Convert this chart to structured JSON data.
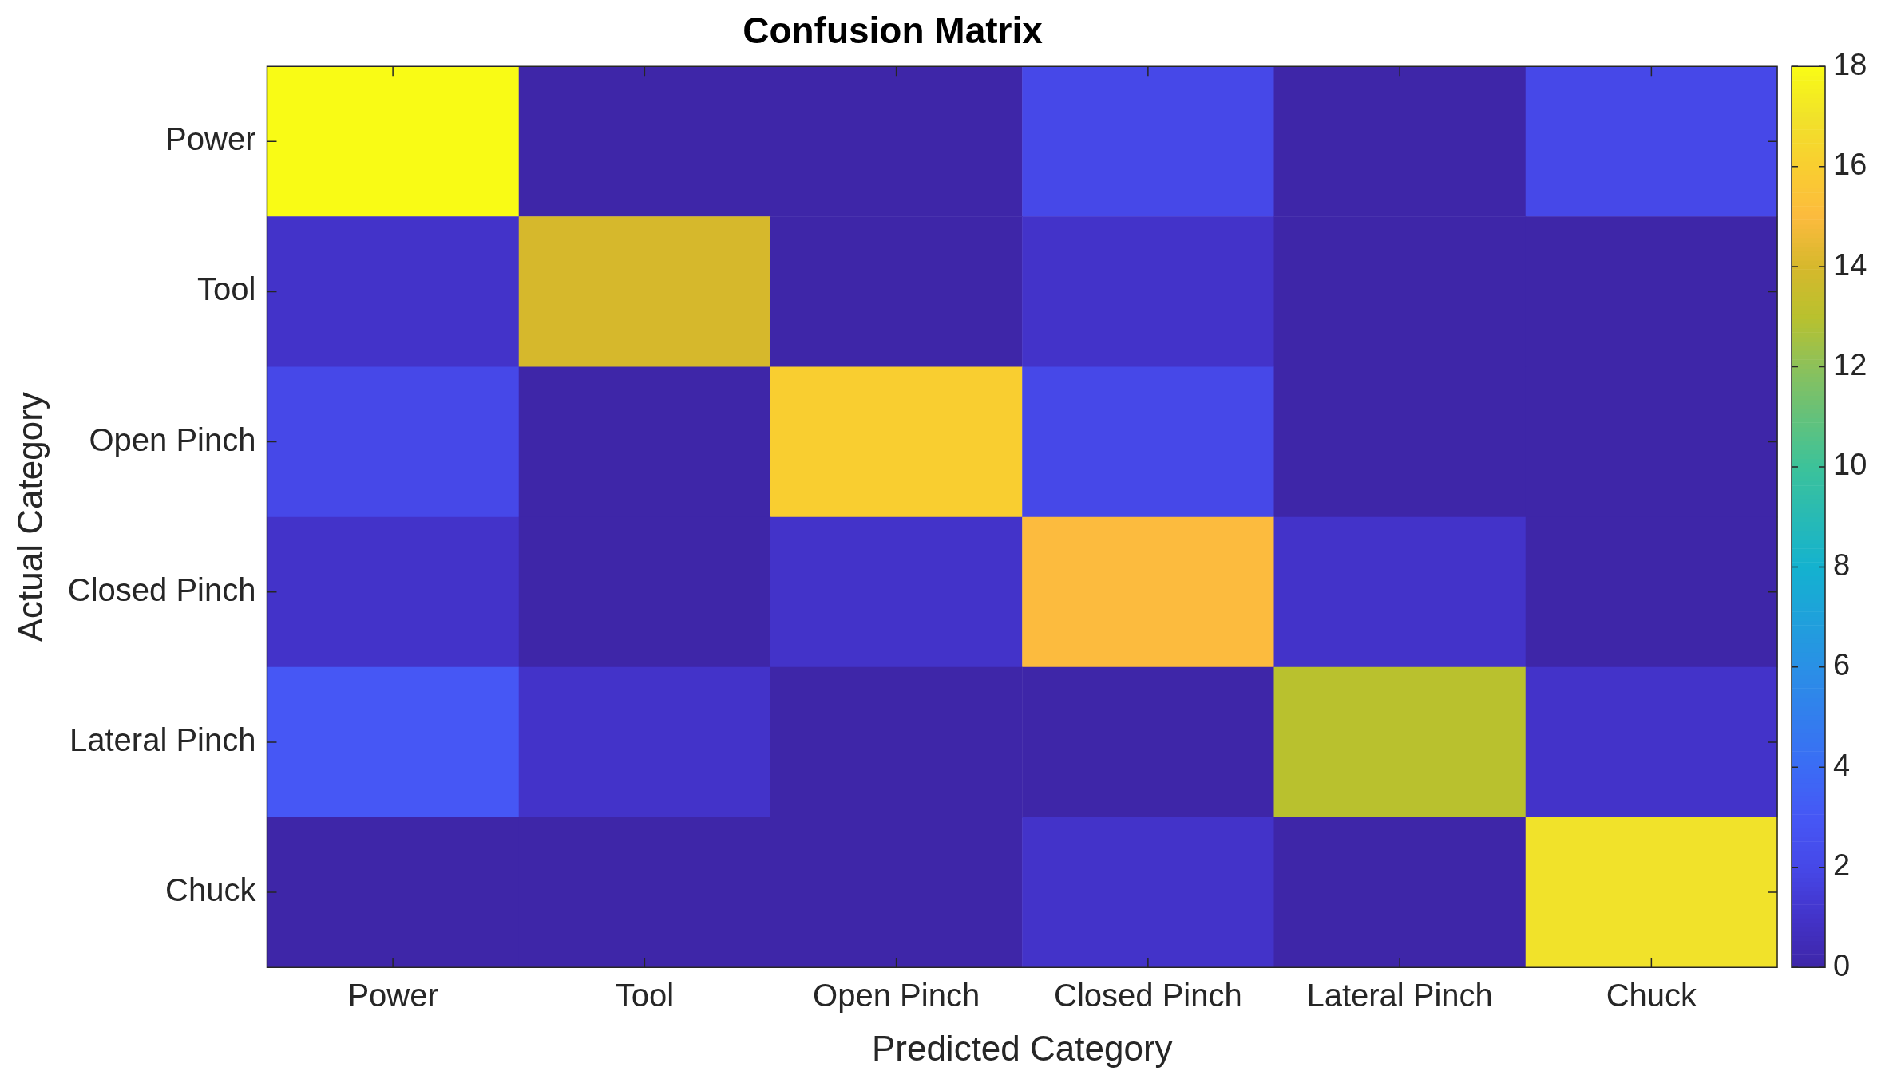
{
  "chart_data": {
    "type": "heatmap",
    "title": "Confusion Matrix",
    "xlabel": "Predicted Category",
    "ylabel": "Actual Category",
    "categories": [
      "Power",
      "Tool",
      "Open Pinch",
      "Closed Pinch",
      "Lateral Pinch",
      "Chuck"
    ],
    "y_categories": [
      "Power",
      "Tool",
      "Open Pinch",
      "Closed Pinch",
      "Lateral Pinch",
      "Chuck"
    ],
    "cells": [
      [
        18,
        0,
        0,
        2,
        0,
        2
      ],
      [
        1,
        14,
        0,
        1,
        0,
        0
      ],
      [
        2,
        0,
        16,
        2,
        0,
        0
      ],
      [
        1,
        0,
        1,
        15,
        1,
        0
      ],
      [
        3,
        1,
        0,
        0,
        13,
        1
      ],
      [
        0,
        0,
        0,
        1,
        0,
        17
      ]
    ],
    "clim": [
      0,
      18
    ],
    "cticks": [
      0,
      2,
      4,
      6,
      8,
      10,
      12,
      14,
      16,
      18
    ]
  }
}
